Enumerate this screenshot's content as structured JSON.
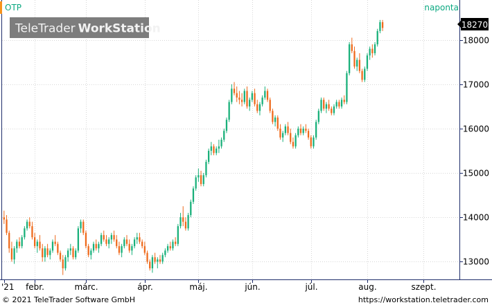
{
  "header": {
    "symbol": "OTP",
    "interval": "naponta",
    "watermark_light": "TeleTrader",
    "watermark_bold": "WorkStation",
    "last_price": "18270"
  },
  "footer": {
    "copyright": "© 2021 TeleTrader Software GmbH",
    "url": "https://workstation.teletrader.com"
  },
  "colors": {
    "up": "#19b07a",
    "down": "#ee6a1c",
    "grid": "#d6d6d6",
    "accent": "#0aa880",
    "axis": "#1d2c6a"
  },
  "chart_data": {
    "type": "candlestick",
    "title": "OTP",
    "interval": "naponta",
    "ylim": [
      12600,
      18900
    ],
    "y_ticks": [
      13000,
      14000,
      15000,
      16000,
      17000,
      18000
    ],
    "y_tick_labels": [
      "13000",
      "14000",
      "15000",
      "16000",
      "17000",
      "18000"
    ],
    "x_ticks": [
      {
        "label": "'21",
        "index": 0
      },
      {
        "label": "febr.",
        "index": 12
      },
      {
        "label": "márc.",
        "index": 32
      },
      {
        "label": "ápr.",
        "index": 55
      },
      {
        "label": "máj.",
        "index": 76
      },
      {
        "label": "jún.",
        "index": 97
      },
      {
        "label": "júl.",
        "index": 120
      },
      {
        "label": "aug.",
        "index": 142
      },
      {
        "label": "szept.",
        "index": 164
      }
    ],
    "n_slots": 178,
    "last_price": 18270,
    "ohlc": [
      [
        14000,
        14150,
        13850,
        13950
      ],
      [
        13950,
        14050,
        13600,
        13650
      ],
      [
        13650,
        13700,
        13200,
        13300
      ],
      [
        13300,
        13450,
        13000,
        13050
      ],
      [
        13050,
        13350,
        12950,
        13300
      ],
      [
        13300,
        13500,
        13200,
        13450
      ],
      [
        13450,
        13550,
        13300,
        13350
      ],
      [
        13350,
        13600,
        13300,
        13550
      ],
      [
        13550,
        13800,
        13500,
        13750
      ],
      [
        13750,
        13950,
        13700,
        13900
      ],
      [
        13900,
        14000,
        13750,
        13800
      ],
      [
        13800,
        13900,
        13500,
        13550
      ],
      [
        13550,
        13650,
        13300,
        13350
      ],
      [
        13350,
        13500,
        13200,
        13450
      ],
      [
        13450,
        13600,
        13250,
        13300
      ],
      [
        13300,
        13400,
        13000,
        13100
      ],
      [
        13100,
        13350,
        13000,
        13300
      ],
      [
        13300,
        13400,
        13100,
        13150
      ],
      [
        13150,
        13300,
        13050,
        13250
      ],
      [
        13250,
        13500,
        13200,
        13450
      ],
      [
        13450,
        13600,
        13350,
        13400
      ],
      [
        13400,
        13450,
        13150,
        13200
      ],
      [
        13200,
        13250,
        13000,
        13050
      ],
      [
        13050,
        13150,
        12700,
        12850
      ],
      [
        12850,
        13150,
        12800,
        13100
      ],
      [
        13100,
        13300,
        13000,
        13250
      ],
      [
        13250,
        13400,
        13150,
        13300
      ],
      [
        13300,
        13350,
        13050,
        13100
      ],
      [
        13100,
        13300,
        13050,
        13250
      ],
      [
        13250,
        13800,
        13200,
        13750
      ],
      [
        13750,
        13950,
        13650,
        13900
      ],
      [
        13900,
        13950,
        13600,
        13650
      ],
      [
        13650,
        13700,
        13300,
        13350
      ],
      [
        13350,
        13400,
        13100,
        13150
      ],
      [
        13150,
        13300,
        13050,
        13250
      ],
      [
        13250,
        13450,
        13200,
        13400
      ],
      [
        13400,
        13500,
        13250,
        13300
      ],
      [
        13300,
        13450,
        13200,
        13400
      ],
      [
        13400,
        13650,
        13350,
        13600
      ],
      [
        13600,
        13700,
        13450,
        13500
      ],
      [
        13500,
        13600,
        13350,
        13400
      ],
      [
        13400,
        13550,
        13300,
        13500
      ],
      [
        13500,
        13650,
        13400,
        13600
      ],
      [
        13600,
        13700,
        13450,
        13500
      ],
      [
        13500,
        13600,
        13300,
        13350
      ],
      [
        13350,
        13450,
        13150,
        13200
      ],
      [
        13200,
        13400,
        13100,
        13350
      ],
      [
        13350,
        13550,
        13300,
        13500
      ],
      [
        13500,
        13600,
        13350,
        13400
      ],
      [
        13400,
        13500,
        13200,
        13250
      ],
      [
        13250,
        13400,
        13150,
        13350
      ],
      [
        13350,
        13550,
        13300,
        13500
      ],
      [
        13500,
        13650,
        13400,
        13550
      ],
      [
        13550,
        13650,
        13400,
        13450
      ],
      [
        13450,
        13500,
        13300,
        13350
      ],
      [
        13350,
        13450,
        13150,
        13200
      ],
      [
        13200,
        13250,
        12950,
        13000
      ],
      [
        13000,
        13050,
        12800,
        12850
      ],
      [
        12850,
        13150,
        12750,
        13100
      ],
      [
        13100,
        13200,
        12950,
        13000
      ],
      [
        13000,
        13100,
        12850,
        13050
      ],
      [
        13050,
        13150,
        12950,
        13000
      ],
      [
        13000,
        13200,
        12950,
        13150
      ],
      [
        13150,
        13300,
        13100,
        13250
      ],
      [
        13250,
        13400,
        13200,
        13350
      ],
      [
        13350,
        13450,
        13250,
        13300
      ],
      [
        13300,
        13500,
        13250,
        13450
      ],
      [
        13450,
        13550,
        13350,
        13400
      ],
      [
        13400,
        13850,
        13350,
        13800
      ],
      [
        13800,
        14100,
        13750,
        14000
      ],
      [
        14000,
        14250,
        13800,
        13900
      ],
      [
        13900,
        14000,
        13700,
        13750
      ],
      [
        13750,
        14100,
        13700,
        14050
      ],
      [
        14050,
        14400,
        14000,
        14350
      ],
      [
        14350,
        14700,
        14300,
        14650
      ],
      [
        14650,
        14950,
        14600,
        14900
      ],
      [
        14900,
        15100,
        14800,
        14950
      ],
      [
        14950,
        15050,
        14700,
        14750
      ],
      [
        14750,
        15000,
        14700,
        14950
      ],
      [
        14950,
        15300,
        14900,
        15250
      ],
      [
        15250,
        15550,
        15200,
        15500
      ],
      [
        15500,
        15700,
        15400,
        15600
      ],
      [
        15600,
        15650,
        15400,
        15450
      ],
      [
        15450,
        15600,
        15400,
        15550
      ],
      [
        15550,
        15750,
        15450,
        15600
      ],
      [
        15600,
        15800,
        15550,
        15750
      ],
      [
        15750,
        16000,
        15700,
        15950
      ],
      [
        15950,
        16250,
        15900,
        16200
      ],
      [
        16200,
        16650,
        16150,
        16600
      ],
      [
        16600,
        17000,
        16550,
        16900
      ],
      [
        16900,
        17050,
        16750,
        16800
      ],
      [
        16800,
        16950,
        16600,
        16700
      ],
      [
        16700,
        16850,
        16550,
        16650
      ],
      [
        16650,
        16800,
        16500,
        16600
      ],
      [
        16600,
        16900,
        16550,
        16850
      ],
      [
        16850,
        16950,
        16450,
        16500
      ],
      [
        16500,
        16700,
        16400,
        16650
      ],
      [
        16650,
        16850,
        16600,
        16800
      ],
      [
        16800,
        16900,
        16500,
        16550
      ],
      [
        16550,
        16650,
        16350,
        16400
      ],
      [
        16400,
        16600,
        16300,
        16550
      ],
      [
        16550,
        16750,
        16500,
        16700
      ],
      [
        16700,
        16950,
        16650,
        16850
      ],
      [
        16850,
        16900,
        16600,
        16650
      ],
      [
        16650,
        16700,
        16350,
        16400
      ],
      [
        16400,
        16450,
        16100,
        16150
      ],
      [
        16150,
        16300,
        16050,
        16250
      ],
      [
        16250,
        16300,
        15950,
        16000
      ],
      [
        16000,
        16100,
        15750,
        15800
      ],
      [
        15800,
        15950,
        15700,
        15900
      ],
      [
        15900,
        16100,
        15850,
        16050
      ],
      [
        16050,
        16150,
        15850,
        15900
      ],
      [
        15900,
        16000,
        15650,
        15700
      ],
      [
        15700,
        15800,
        15550,
        15600
      ],
      [
        15600,
        15900,
        15550,
        15850
      ],
      [
        15850,
        16050,
        15800,
        16000
      ],
      [
        16000,
        16100,
        15850,
        15900
      ],
      [
        15900,
        16050,
        15850,
        16000
      ],
      [
        16000,
        16100,
        15900,
        15950
      ],
      [
        15950,
        16000,
        15750,
        15800
      ],
      [
        15800,
        15850,
        15550,
        15600
      ],
      [
        15600,
        15850,
        15550,
        15800
      ],
      [
        15800,
        16200,
        15750,
        16150
      ],
      [
        16150,
        16450,
        16100,
        16400
      ],
      [
        16400,
        16700,
        16350,
        16650
      ],
      [
        16650,
        16700,
        16400,
        16450
      ],
      [
        16450,
        16600,
        16350,
        16550
      ],
      [
        16550,
        16650,
        16400,
        16450
      ],
      [
        16450,
        16500,
        16300,
        16350
      ],
      [
        16350,
        16550,
        16300,
        16500
      ],
      [
        16500,
        16650,
        16450,
        16600
      ],
      [
        16600,
        16650,
        16450,
        16500
      ],
      [
        16500,
        16700,
        16450,
        16650
      ],
      [
        16650,
        16750,
        16550,
        16600
      ],
      [
        16600,
        17300,
        16550,
        17250
      ],
      [
        17250,
        17950,
        17200,
        17900
      ],
      [
        17900,
        18050,
        17700,
        17750
      ],
      [
        17750,
        17850,
        17350,
        17400
      ],
      [
        17400,
        17600,
        17300,
        17550
      ],
      [
        17550,
        17700,
        17250,
        17300
      ],
      [
        17300,
        17350,
        17050,
        17100
      ],
      [
        17100,
        17400,
        17050,
        17350
      ],
      [
        17350,
        17700,
        17300,
        17650
      ],
      [
        17650,
        17850,
        17550,
        17800
      ],
      [
        17800,
        17900,
        17600,
        17700
      ],
      [
        17700,
        17950,
        17650,
        17900
      ],
      [
        17900,
        18250,
        17850,
        18200
      ],
      [
        18200,
        18450,
        18150,
        18400
      ],
      [
        18400,
        18450,
        18200,
        18270
      ]
    ]
  }
}
